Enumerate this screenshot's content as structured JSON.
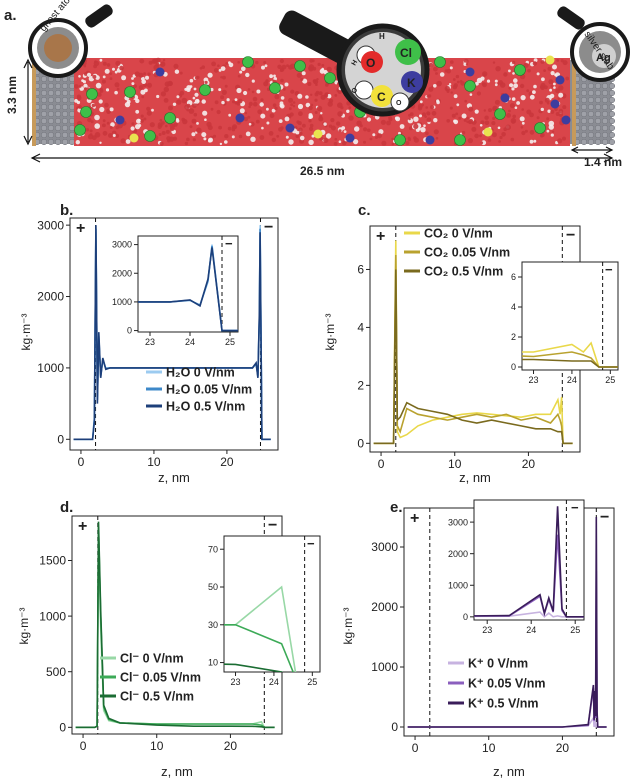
{
  "panel_a": {
    "letter": "a.",
    "height_label": "3.3 nm",
    "length_label": "26.5 nm",
    "slab_width_label": "1.4 nm",
    "ghost_label": "ghost atoms",
    "silver_label": "silver slab",
    "silver_symbol": "Ag",
    "legend": {
      "h_label": "H",
      "o_label": "O",
      "cl_label": "Cl",
      "k_label": "K",
      "c_label": "C",
      "mol_h": "H",
      "mol_o_left": "O",
      "mol_o_right": "O",
      "o_color": "#e32b2b",
      "cl_color": "#3fbf49",
      "k_color": "#3d3d9f",
      "c_color": "#f2e13b"
    },
    "colors": {
      "water": "#d9454a",
      "slab": "#8a8c93",
      "slab_edge": "#c79a5a",
      "cl": "#3fbf49",
      "k": "#3d3d9f",
      "co2": "#e9e34f"
    }
  },
  "chart_data": [
    {
      "panel": "b.",
      "type": "line",
      "electrode_left": "+",
      "electrode_right": "−",
      "xlabel": "z, nm",
      "ylabel": "kg·m⁻³",
      "xlim": [
        -1.5,
        27
      ],
      "ylim": [
        -150,
        3100
      ],
      "xticks": [
        0,
        10,
        20
      ],
      "yticks": [
        0,
        1000,
        2000,
        3000
      ],
      "dashed_x": [
        2.0,
        24.6
      ],
      "legend_position": "lower-center",
      "series": [
        {
          "name": "H₂O 0 V/nm",
          "color": "#9ccbf0",
          "x": [
            -1,
            1.6,
            1.85,
            2.05,
            2.25,
            2.45,
            2.7,
            3.0,
            3.4,
            4,
            10,
            20,
            23.5,
            24.0,
            24.25,
            24.45,
            24.55,
            24.8,
            25.2,
            26
          ],
          "y": [
            0,
            0,
            300,
            2900,
            600,
            1400,
            900,
            1100,
            1000,
            1000,
            1000,
            1000,
            1000,
            1050,
            900,
            1700,
            3000,
            0,
            0,
            0
          ]
        },
        {
          "name": "H₂O 0.05 V/nm",
          "color": "#3d88c9",
          "x": [
            -1,
            1.6,
            1.85,
            2.05,
            2.25,
            2.45,
            2.7,
            3.0,
            3.4,
            4,
            10,
            20,
            23.5,
            24.0,
            24.25,
            24.45,
            24.55,
            24.8,
            25.2,
            26
          ],
          "y": [
            0,
            0,
            300,
            2950,
            550,
            1450,
            880,
            1120,
            990,
            1000,
            1000,
            1000,
            1000,
            1060,
            880,
            1750,
            2950,
            0,
            0,
            0
          ]
        },
        {
          "name": "H₂O 0.5 V/nm",
          "color": "#1d3f7a",
          "x": [
            -1,
            1.6,
            1.85,
            2.05,
            2.25,
            2.45,
            2.7,
            3.0,
            3.4,
            4,
            10,
            20,
            23.5,
            24.0,
            24.25,
            24.45,
            24.55,
            24.8,
            25.2,
            26
          ],
          "y": [
            0,
            0,
            250,
            3000,
            500,
            1500,
            860,
            1140,
            980,
            1000,
            1000,
            1000,
            1000,
            1070,
            860,
            1800,
            2900,
            0,
            0,
            0
          ]
        }
      ],
      "inset": {
        "xlim": [
          22.7,
          25.2
        ],
        "ylim": [
          -50,
          3300
        ],
        "xticks": [
          23,
          24,
          25
        ],
        "yticks": [
          0,
          1000,
          2000,
          3000
        ],
        "dashed_x": [
          24.8
        ],
        "electrode_right": "−"
      }
    },
    {
      "panel": "c.",
      "type": "line",
      "electrode_left": "+",
      "electrode_right": "−",
      "xlabel": "z, nm",
      "ylabel": "kg·m⁻³",
      "xlim": [
        -1.5,
        27
      ],
      "ylim": [
        -0.3,
        7.5
      ],
      "xticks": [
        0,
        10,
        20
      ],
      "yticks": [
        0,
        2,
        4,
        6
      ],
      "dashed_x": [
        2.0,
        24.6
      ],
      "legend_position": "top-center",
      "series": [
        {
          "name": "CO₂ 0 V/nm",
          "color": "#e9d84a",
          "x": [
            -1,
            1.7,
            2.0,
            2.2,
            2.6,
            3.5,
            5,
            7,
            9,
            11,
            13,
            15,
            17,
            19,
            21,
            23,
            24.0,
            24.3,
            24.5,
            24.7,
            26
          ],
          "y": [
            0,
            0,
            7.0,
            0.4,
            0.2,
            0.3,
            0.6,
            0.8,
            0.9,
            1.0,
            1.05,
            1.0,
            0.95,
            0.9,
            1.0,
            1.0,
            1.5,
            1.0,
            1.6,
            0,
            0
          ]
        },
        {
          "name": "CO₂ 0.05 V/nm",
          "color": "#b9a22f",
          "x": [
            -1,
            1.7,
            2.0,
            2.2,
            2.6,
            3.5,
            5,
            7,
            9,
            11,
            13,
            15,
            17,
            19,
            21,
            23,
            24.0,
            24.3,
            24.5,
            24.7,
            26
          ],
          "y": [
            0,
            0,
            6.5,
            0.6,
            0.4,
            1.2,
            1.0,
            0.9,
            0.8,
            0.9,
            1.0,
            0.9,
            1.0,
            0.8,
            0.9,
            0.7,
            1.0,
            0.8,
            0.6,
            0,
            0
          ]
        },
        {
          "name": "CO₂ 0.5 V/nm",
          "color": "#7a6a1e",
          "x": [
            -1,
            1.7,
            2.0,
            2.2,
            2.6,
            3.5,
            5,
            7,
            9,
            11,
            13,
            15,
            17,
            19,
            21,
            23,
            24.0,
            24.3,
            24.5,
            24.7,
            26
          ],
          "y": [
            0,
            0,
            6.0,
            0.8,
            0.9,
            1.4,
            1.2,
            1.1,
            1.0,
            0.8,
            0.7,
            0.8,
            0.7,
            0.6,
            0.5,
            0.5,
            0.4,
            0.4,
            0.4,
            0,
            0
          ]
        }
      ],
      "inset": {
        "xlim": [
          22.7,
          25.2
        ],
        "ylim": [
          -0.2,
          7
        ],
        "xticks": [
          23,
          24,
          25
        ],
        "yticks": [
          0,
          2,
          4,
          6
        ],
        "dashed_x": [
          24.8
        ]
      }
    },
    {
      "panel": "d.",
      "type": "line",
      "electrode_left": "+",
      "electrode_right": "−",
      "xlabel": "z, nm",
      "ylabel": "kg·m⁻³",
      "xlim": [
        -1.5,
        27
      ],
      "ylim": [
        -60,
        1900
      ],
      "xticks": [
        0,
        10,
        20
      ],
      "yticks": [
        0,
        500,
        1000,
        1500
      ],
      "dashed_x": [
        2.0,
        24.6
      ],
      "legend_position": "lower-left",
      "series": [
        {
          "name": "Cl⁻ 0 V/nm",
          "color": "#98d8a6",
          "x": [
            -1,
            1.6,
            1.9,
            2.1,
            2.4,
            2.8,
            3.5,
            5,
            10,
            15,
            20,
            23,
            24.2,
            24.6,
            26
          ],
          "y": [
            0,
            0,
            10,
            1700,
            900,
            150,
            60,
            40,
            30,
            30,
            30,
            30,
            50,
            0,
            0
          ]
        },
        {
          "name": "Cl⁻ 0.05 V/nm",
          "color": "#3caa57",
          "x": [
            -1,
            1.6,
            1.9,
            2.1,
            2.4,
            2.8,
            3.5,
            5,
            10,
            15,
            20,
            23,
            24.2,
            24.6,
            26
          ],
          "y": [
            0,
            0,
            10,
            1800,
            1000,
            180,
            70,
            40,
            30,
            30,
            30,
            30,
            20,
            0,
            0
          ]
        },
        {
          "name": "Cl⁻ 0.5 V/nm",
          "color": "#1b6d33",
          "x": [
            -1,
            1.6,
            1.9,
            2.1,
            2.4,
            2.8,
            3.5,
            5,
            10,
            15,
            20,
            23,
            24.2,
            24.6,
            26
          ],
          "y": [
            0,
            0,
            10,
            1850,
            1050,
            200,
            80,
            40,
            20,
            10,
            10,
            9,
            5,
            0,
            0
          ]
        }
      ],
      "inset": {
        "xlim": [
          22.7,
          25.2
        ],
        "ylim": [
          5,
          77
        ],
        "xticks": [
          23,
          24,
          25
        ],
        "yticks": [
          10,
          30,
          50,
          70
        ],
        "dashed_x": [
          24.8
        ]
      }
    },
    {
      "panel": "e.",
      "type": "line",
      "electrode_left": "+",
      "electrode_right": "−",
      "xlabel": "z, nm",
      "ylabel": "kg·m⁻³",
      "xlim": [
        -1.5,
        27
      ],
      "ylim": [
        -150,
        3650
      ],
      "xticks": [
        0,
        10,
        20
      ],
      "yticks": [
        0,
        1000,
        2000,
        3000
      ],
      "dashed_x": [
        2.0,
        24.6
      ],
      "legend_position": "lower-right",
      "series": [
        {
          "name": "K⁺ 0 V/nm",
          "color": "#c7b3e0",
          "x": [
            -1,
            2,
            10,
            20,
            23.5,
            24.2,
            24.3,
            24.4,
            24.5,
            24.6,
            24.7,
            24.8,
            26
          ],
          "y": [
            0,
            0,
            0,
            0,
            20,
            150,
            0,
            120,
            0,
            30,
            0,
            0,
            0
          ]
        },
        {
          "name": "K⁺ 0.05 V/nm",
          "color": "#8b5fbe",
          "x": [
            -1,
            2,
            10,
            20,
            23.5,
            24.2,
            24.3,
            24.4,
            24.5,
            24.6,
            24.7,
            24.8,
            26
          ],
          "y": [
            0,
            0,
            0,
            0,
            30,
            650,
            100,
            550,
            150,
            2600,
            200,
            0,
            0
          ]
        },
        {
          "name": "K⁺ 0.5 V/nm",
          "color": "#3a1d5a",
          "x": [
            -1,
            2,
            10,
            20,
            23.5,
            24.2,
            24.3,
            24.4,
            24.5,
            24.6,
            24.7,
            24.8,
            26
          ],
          "y": [
            0,
            0,
            0,
            0,
            40,
            700,
            120,
            600,
            180,
            3500,
            250,
            0,
            0
          ]
        }
      ],
      "inset": {
        "xlim": [
          22.7,
          25.2
        ],
        "ylim": [
          -100,
          3700
        ],
        "xticks": [
          23,
          24,
          25
        ],
        "yticks": [
          0,
          1000,
          2000,
          3000
        ],
        "dashed_x": [
          24.8
        ]
      }
    }
  ]
}
